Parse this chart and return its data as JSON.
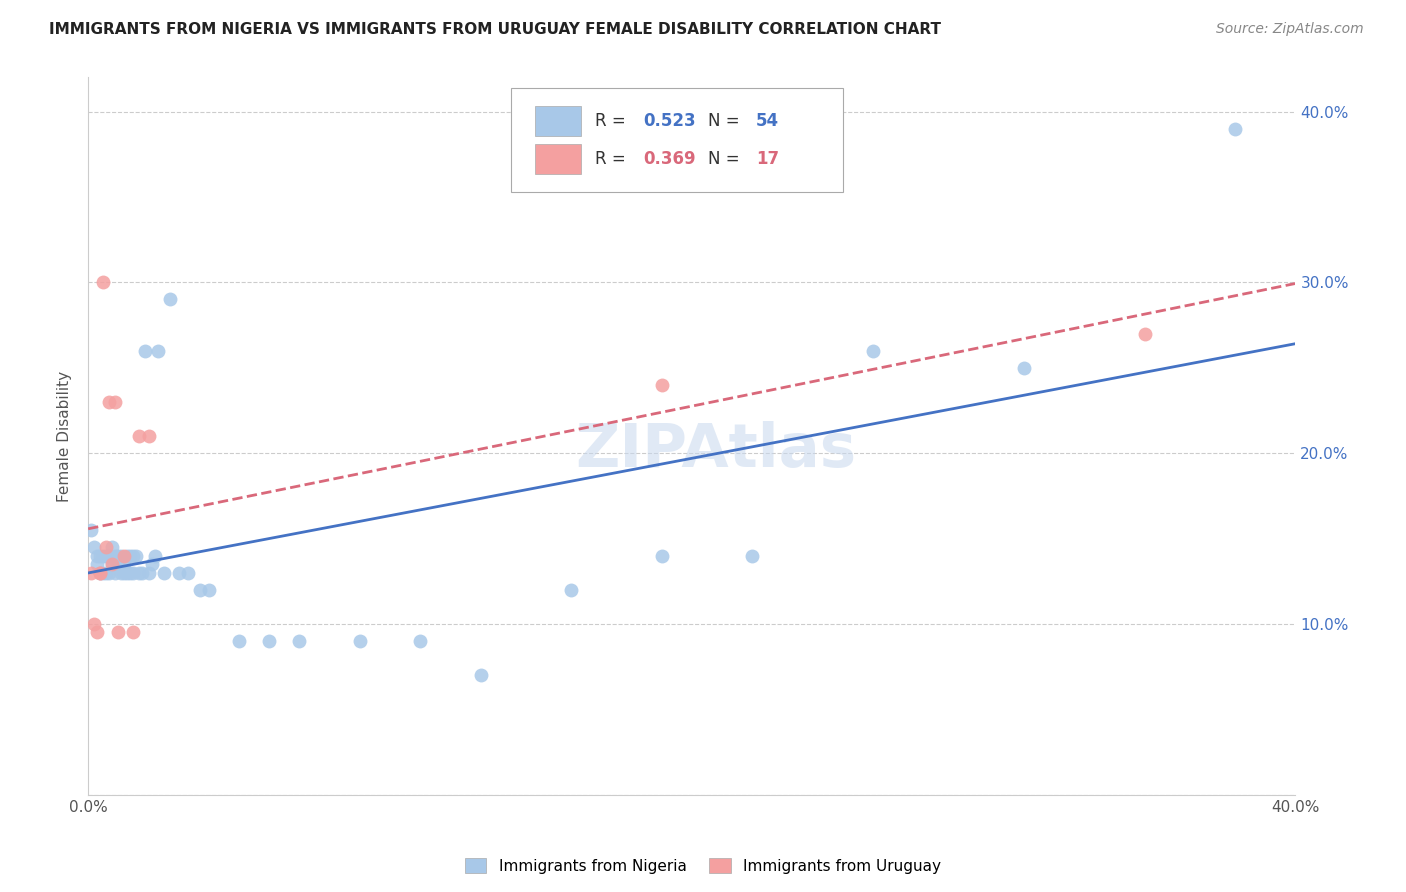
{
  "title": "IMMIGRANTS FROM NIGERIA VS IMMIGRANTS FROM URUGUAY FEMALE DISABILITY CORRELATION CHART",
  "source": "Source: ZipAtlas.com",
  "ylabel": "Female Disability",
  "xlim": [
    0.0,
    0.4
  ],
  "ylim": [
    0.0,
    0.42
  ],
  "nigeria_R": 0.523,
  "nigeria_N": 54,
  "uruguay_R": 0.369,
  "uruguay_N": 17,
  "nigeria_color": "#a8c8e8",
  "uruguay_color": "#f4a0a0",
  "nigeria_line_color": "#4472c4",
  "uruguay_line_color": "#d9687a",
  "watermark": "ZIPAtlas",
  "nigeria_x": [
    0.001,
    0.002,
    0.003,
    0.003,
    0.004,
    0.004,
    0.005,
    0.005,
    0.006,
    0.006,
    0.007,
    0.007,
    0.008,
    0.008,
    0.009,
    0.009,
    0.01,
    0.01,
    0.011,
    0.011,
    0.012,
    0.012,
    0.013,
    0.013,
    0.014,
    0.014,
    0.015,
    0.015,
    0.016,
    0.017,
    0.018,
    0.019,
    0.02,
    0.021,
    0.022,
    0.023,
    0.025,
    0.027,
    0.03,
    0.033,
    0.037,
    0.04,
    0.05,
    0.06,
    0.07,
    0.09,
    0.11,
    0.13,
    0.16,
    0.19,
    0.22,
    0.26,
    0.31,
    0.38
  ],
  "nigeria_y": [
    0.155,
    0.145,
    0.135,
    0.14,
    0.13,
    0.14,
    0.13,
    0.14,
    0.13,
    0.14,
    0.13,
    0.14,
    0.135,
    0.145,
    0.13,
    0.14,
    0.135,
    0.14,
    0.13,
    0.14,
    0.135,
    0.13,
    0.13,
    0.14,
    0.13,
    0.14,
    0.13,
    0.14,
    0.14,
    0.13,
    0.13,
    0.26,
    0.13,
    0.135,
    0.14,
    0.26,
    0.13,
    0.29,
    0.13,
    0.13,
    0.12,
    0.12,
    0.09,
    0.09,
    0.09,
    0.09,
    0.09,
    0.07,
    0.12,
    0.14,
    0.14,
    0.26,
    0.25,
    0.39
  ],
  "uruguay_x": [
    0.001,
    0.002,
    0.003,
    0.004,
    0.004,
    0.005,
    0.006,
    0.007,
    0.008,
    0.009,
    0.01,
    0.012,
    0.015,
    0.017,
    0.02,
    0.19,
    0.35
  ],
  "uruguay_y": [
    0.13,
    0.1,
    0.095,
    0.13,
    0.13,
    0.3,
    0.145,
    0.23,
    0.135,
    0.23,
    0.095,
    0.14,
    0.095,
    0.21,
    0.21,
    0.24,
    0.27
  ]
}
